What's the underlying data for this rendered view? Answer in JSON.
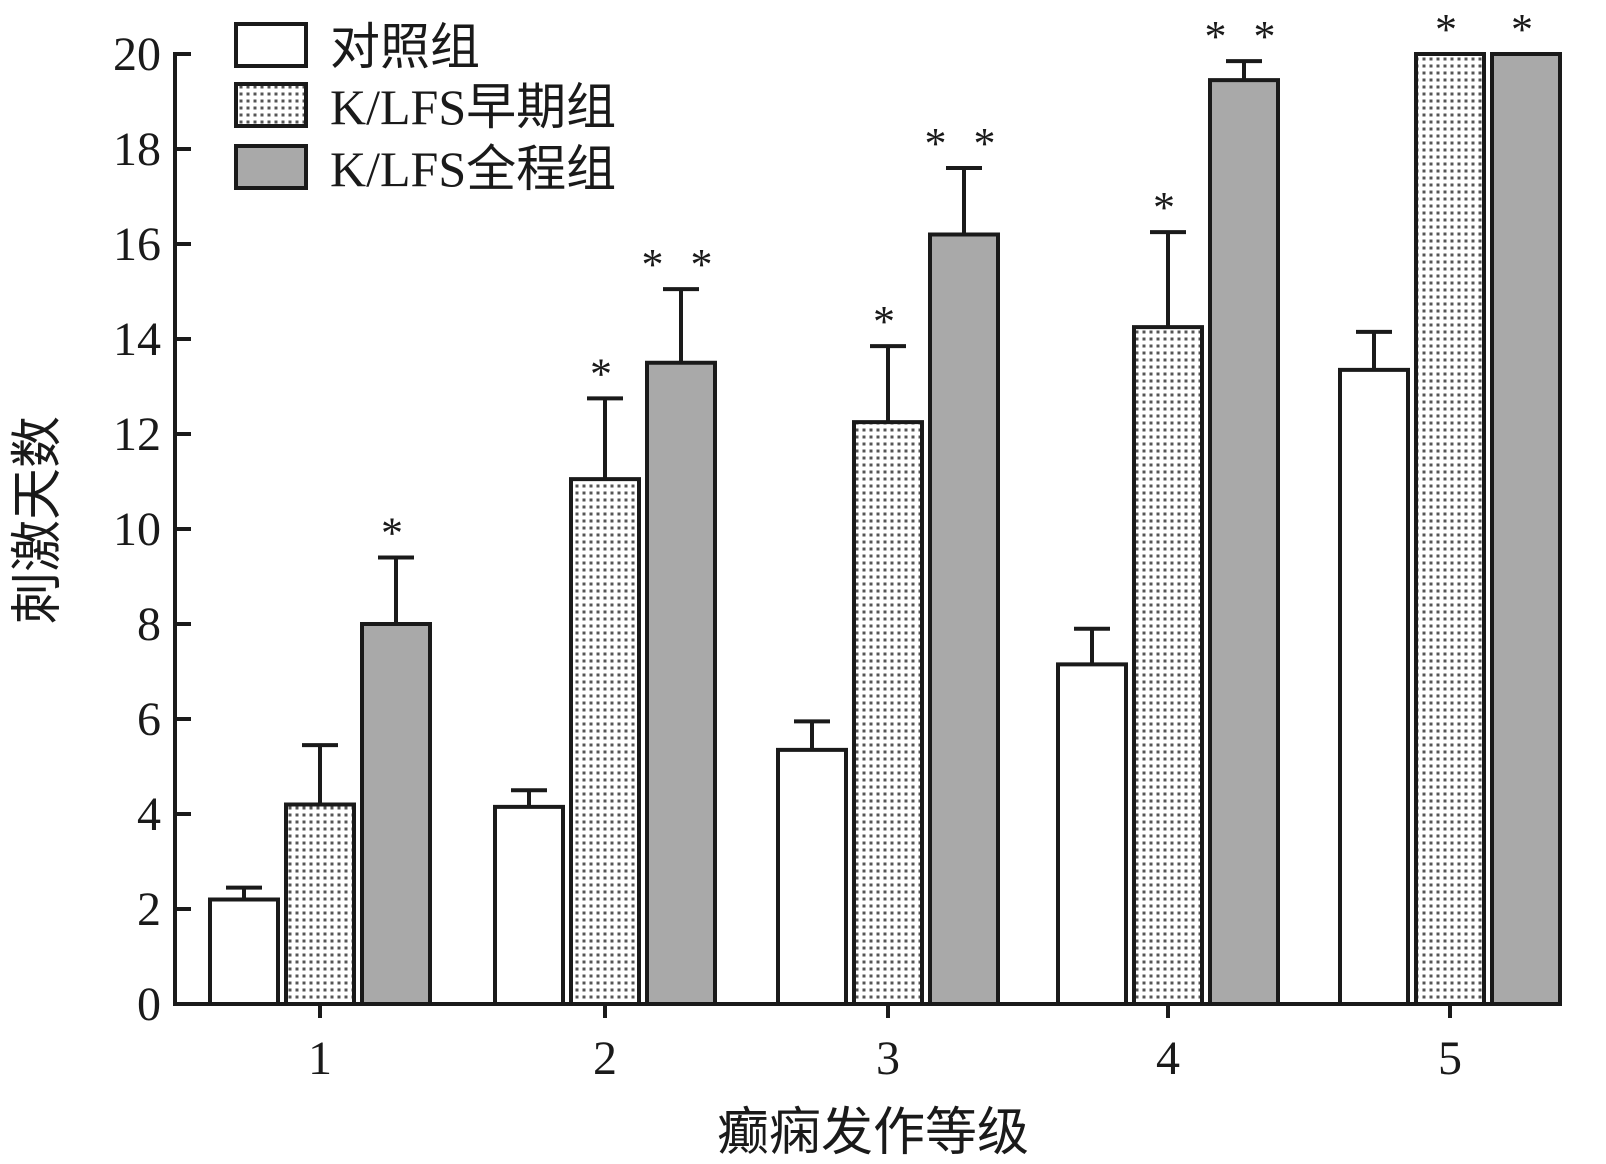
{
  "chart_data": {
    "type": "bar",
    "xlabel": "癫痫发作等级",
    "ylabel": "刺激天数",
    "categories": [
      "1",
      "2",
      "3",
      "4",
      "5"
    ],
    "ylim": [
      0,
      20
    ],
    "yticks": [
      "0",
      "2",
      "4",
      "6",
      "8",
      "10",
      "12",
      "14",
      "16",
      "18",
      "20"
    ],
    "legend_position": "top-left",
    "series": [
      {
        "name": "对照组",
        "fill": "white",
        "values": [
          2.2,
          4.15,
          5.35,
          7.15,
          13.35
        ],
        "errors": [
          0.25,
          0.35,
          0.6,
          0.75,
          0.8
        ],
        "significance": [
          "",
          "",
          "",
          "",
          ""
        ]
      },
      {
        "name": "K/LFS早期组",
        "fill": "dotted",
        "values": [
          4.2,
          11.05,
          12.25,
          14.25,
          20
        ],
        "errors": [
          1.25,
          1.7,
          1.6,
          2.0,
          0
        ],
        "significance": [
          "",
          "*",
          "*",
          "*",
          "*"
        ]
      },
      {
        "name": "K/LFS全程组",
        "fill": "gray",
        "values": [
          8.0,
          13.5,
          16.2,
          19.45,
          20
        ],
        "errors": [
          1.4,
          1.55,
          1.4,
          0.4,
          0
        ],
        "significance": [
          "*",
          "**",
          "**",
          "**",
          "*"
        ]
      }
    ],
    "colors": {
      "axis": "#1a1a1a",
      "gray_fill": "#a9a9a9",
      "dot": "#555555",
      "background": "#ffffff"
    }
  }
}
